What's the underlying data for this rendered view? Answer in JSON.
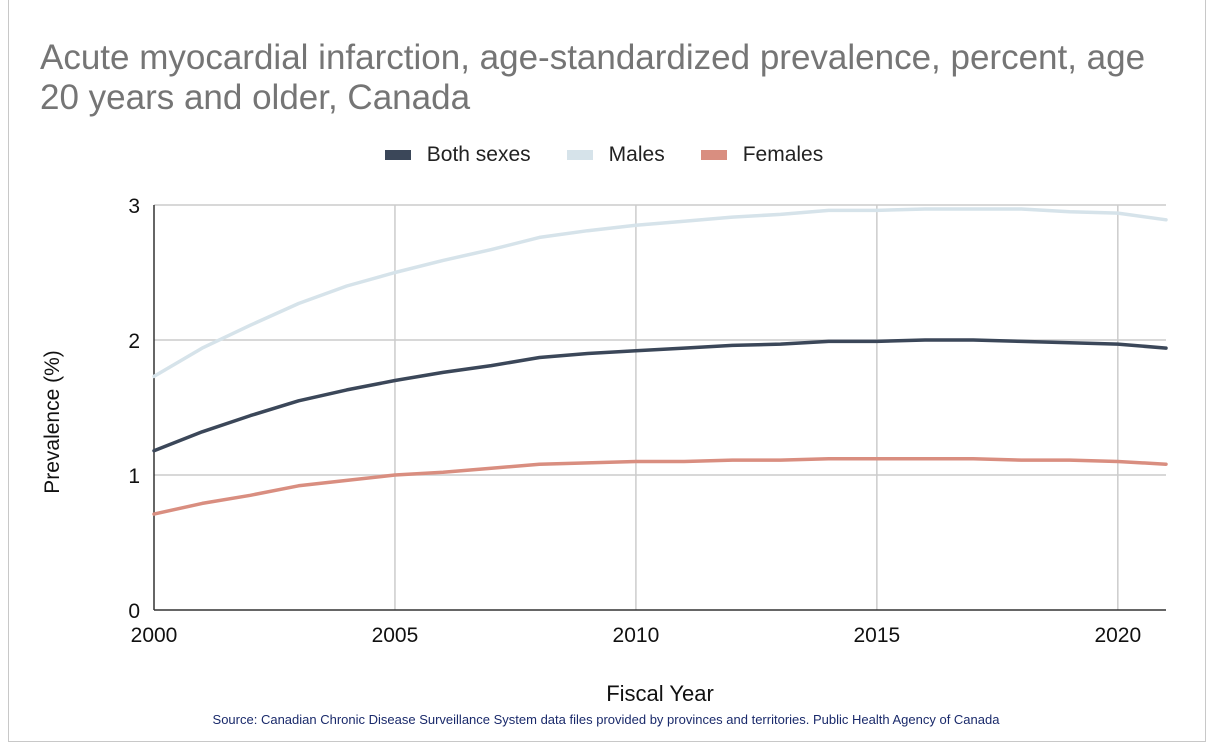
{
  "chart_data": {
    "type": "line",
    "title": "Acute myocardial infarction, age-standardized prevalence, percent, age 20 years and older, Canada",
    "xlabel": "Fiscal Year",
    "ylabel": "Prevalence (%)",
    "source": "Source: Canadian Chronic Disease Surveillance System data files provided by provinces and territories. Public Health Agency of Canada",
    "x": [
      2000,
      2001,
      2002,
      2003,
      2004,
      2005,
      2006,
      2007,
      2008,
      2009,
      2010,
      2011,
      2012,
      2013,
      2014,
      2015,
      2016,
      2017,
      2018,
      2019,
      2020,
      2021
    ],
    "xticks": [
      2000,
      2005,
      2010,
      2015,
      2020
    ],
    "yticks": [
      0,
      1,
      2,
      3
    ],
    "xlim": [
      2000,
      2021
    ],
    "ylim": [
      0,
      3
    ],
    "grid": true,
    "legend_position": "top",
    "series": [
      {
        "name": "Both sexes",
        "color": "#3b4759",
        "values": [
          1.18,
          1.32,
          1.44,
          1.55,
          1.63,
          1.7,
          1.76,
          1.81,
          1.87,
          1.9,
          1.92,
          1.94,
          1.96,
          1.97,
          1.99,
          1.99,
          2.0,
          2.0,
          1.99,
          1.98,
          1.97,
          1.94
        ]
      },
      {
        "name": "Males",
        "color": "#d6e3ea",
        "values": [
          1.73,
          1.94,
          2.11,
          2.27,
          2.4,
          2.5,
          2.59,
          2.67,
          2.76,
          2.81,
          2.85,
          2.88,
          2.91,
          2.93,
          2.96,
          2.96,
          2.97,
          2.97,
          2.97,
          2.95,
          2.94,
          2.89
        ]
      },
      {
        "name": "Females",
        "color": "#d98e80",
        "values": [
          0.71,
          0.79,
          0.85,
          0.92,
          0.96,
          1.0,
          1.02,
          1.05,
          1.08,
          1.09,
          1.1,
          1.1,
          1.11,
          1.11,
          1.12,
          1.12,
          1.12,
          1.12,
          1.11,
          1.11,
          1.1,
          1.08
        ]
      }
    ]
  }
}
